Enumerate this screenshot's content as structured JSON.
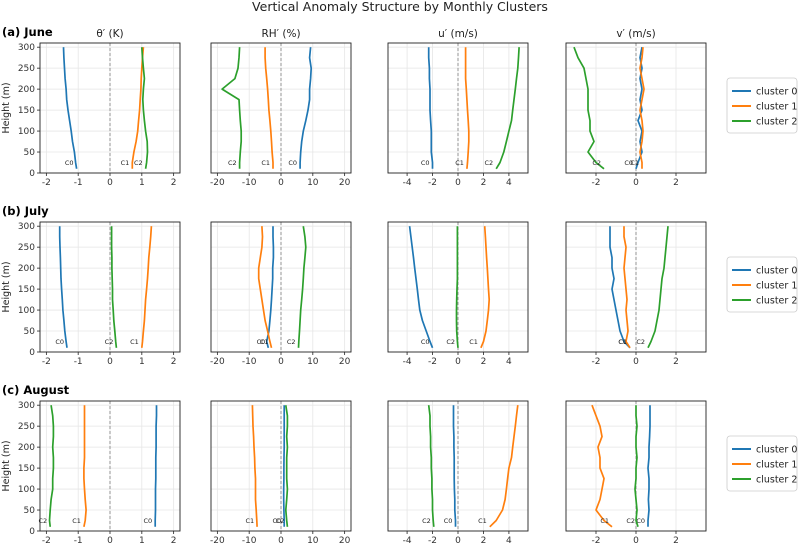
{
  "suptitle": "Vertical Anomaly Structure by Monthly Clusters",
  "ylabel": "Height (m)",
  "variables": [
    {
      "title": "θ′ (K)",
      "xlim": [
        -2.2,
        2.2
      ],
      "xticks": [
        -2,
        -1,
        0,
        1,
        2
      ]
    },
    {
      "title": "RH′ (%)",
      "xlim": [
        -22,
        22
      ],
      "xticks": [
        -20,
        -10,
        0,
        10,
        20
      ]
    },
    {
      "title": "u′ (m/s)",
      "xlim": [
        -5.5,
        5.5
      ],
      "xticks": [
        -4,
        -2,
        0,
        2,
        4
      ]
    },
    {
      "title": "v′ (m/s)",
      "xlim": [
        -3.5,
        3.5
      ],
      "xticks": [
        -2,
        0,
        2
      ]
    }
  ],
  "colors": {
    "cluster 0": "#1f77b4",
    "cluster 1": "#ff7f0e",
    "cluster 2": "#2ca02c"
  },
  "legend": {
    "entries": [
      "cluster 0",
      "cluster 1",
      "cluster 2"
    ],
    "position": "right"
  },
  "chart_data": {
    "type": "line",
    "ylim": [
      0,
      310
    ],
    "yticks": [
      0,
      50,
      100,
      150,
      200,
      250,
      300
    ],
    "heights": [
      10,
      25,
      50,
      75,
      100,
      125,
      150,
      175,
      200,
      225,
      250,
      275,
      300
    ],
    "grid": true,
    "rows": [
      {
        "label": "(a) June",
        "panels": [
          {
            "series": [
              {
                "name": "cluster 0",
                "tag": "C0",
                "values": [
                  -1.05,
                  -1.08,
                  -1.12,
                  -1.18,
                  -1.22,
                  -1.27,
                  -1.32,
                  -1.36,
                  -1.38,
                  -1.41,
                  -1.43,
                  -1.45,
                  -1.46
                ]
              },
              {
                "name": "cluster 1",
                "tag": "C1",
                "values": [
                  0.7,
                  0.7,
                  0.75,
                  0.82,
                  0.87,
                  0.9,
                  0.93,
                  0.95,
                  0.97,
                  0.98,
                  1.0,
                  1.02,
                  1.05
                ]
              },
              {
                "name": "cluster 2",
                "tag": "C2",
                "values": [
                  1.12,
                  1.15,
                  1.18,
                  1.17,
                  1.12,
                  1.08,
                  1.05,
                  1.03,
                  1.05,
                  1.08,
                  1.05,
                  1.02,
                  1.0
                ]
              }
            ]
          },
          {
            "series": [
              {
                "name": "cluster 0",
                "tag": "C0",
                "values": [
                  6.0,
                  6.0,
                  6.2,
                  6.5,
                  7.0,
                  7.8,
                  8.5,
                  9.0,
                  9.0,
                  9.3,
                  9.5,
                  9.0,
                  9.3
                ]
              },
              {
                "name": "cluster 1",
                "tag": "C1",
                "values": [
                  -2.5,
                  -2.5,
                  -2.8,
                  -3.0,
                  -3.2,
                  -3.5,
                  -3.8,
                  -4.0,
                  -4.2,
                  -4.5,
                  -4.8,
                  -5.0,
                  -5.0
                ]
              },
              {
                "name": "cluster 2",
                "tag": "C2",
                "values": [
                  -13.0,
                  -13.0,
                  -12.8,
                  -12.5,
                  -12.5,
                  -12.8,
                  -13.0,
                  -13.2,
                  -18.5,
                  -14.5,
                  -13.5,
                  -13.2,
                  -13.0
                ]
              }
            ]
          },
          {
            "series": [
              {
                "name": "cluster 0",
                "tag": "C0",
                "values": [
                  -2.0,
                  -2.0,
                  -2.1,
                  -2.1,
                  -2.1,
                  -2.15,
                  -2.2,
                  -2.2,
                  -2.2,
                  -2.25,
                  -2.25,
                  -2.3,
                  -2.3
                ]
              },
              {
                "name": "cluster 1",
                "tag": "C1",
                "values": [
                  0.7,
                  0.75,
                  0.8,
                  0.85,
                  0.85,
                  0.8,
                  0.75,
                  0.7,
                  0.65,
                  0.6,
                  0.6,
                  0.6,
                  0.6
                ]
              },
              {
                "name": "cluster 2",
                "tag": "C2",
                "values": [
                  3.0,
                  3.3,
                  3.6,
                  3.8,
                  4.0,
                  4.2,
                  4.3,
                  4.4,
                  4.5,
                  4.6,
                  4.7,
                  4.75,
                  4.8
                ]
              }
            ]
          },
          {
            "series": [
              {
                "name": "cluster 0",
                "tag": "C0",
                "values": [
                  0.0,
                  0.1,
                  0.3,
                  0.2,
                  0.3,
                  0.1,
                  0.3,
                  0.2,
                  0.3,
                  0.2,
                  0.3,
                  0.2,
                  0.3
                ]
              },
              {
                "name": "cluster 1",
                "tag": "C1",
                "values": [
                  0.3,
                  0.3,
                  0.2,
                  0.3,
                  0.35,
                  0.3,
                  0.2,
                  0.3,
                  0.4,
                  0.3,
                  0.2,
                  0.3,
                  0.35
                ]
              },
              {
                "name": "cluster 2",
                "tag": "C2",
                "values": [
                  -1.6,
                  -2.0,
                  -2.4,
                  -2.1,
                  -2.3,
                  -2.3,
                  -2.4,
                  -2.4,
                  -2.4,
                  -2.5,
                  -2.6,
                  -2.9,
                  -3.1
                ]
              }
            ]
          }
        ]
      },
      {
        "label": "(b) July",
        "panels": [
          {
            "series": [
              {
                "name": "cluster 0",
                "tag": "C0",
                "values": [
                  -1.35,
                  -1.38,
                  -1.42,
                  -1.45,
                  -1.48,
                  -1.5,
                  -1.52,
                  -1.54,
                  -1.55,
                  -1.56,
                  -1.57,
                  -1.58,
                  -1.58
                ]
              },
              {
                "name": "cluster 1",
                "tag": "C1",
                "values": [
                  1.0,
                  1.02,
                  1.05,
                  1.08,
                  1.1,
                  1.12,
                  1.15,
                  1.18,
                  1.2,
                  1.22,
                  1.25,
                  1.28,
                  1.3
                ]
              },
              {
                "name": "cluster 2",
                "tag": "C2",
                "values": [
                  0.2,
                  0.18,
                  0.15,
                  0.12,
                  0.1,
                  0.08,
                  0.08,
                  0.07,
                  0.06,
                  0.06,
                  0.05,
                  0.05,
                  0.05
                ]
              }
            ]
          },
          {
            "series": [
              {
                "name": "cluster 0",
                "tag": "C0",
                "values": [
                  -4.0,
                  -4.5,
                  -3.8,
                  -3.5,
                  -3.2,
                  -3.0,
                  -2.8,
                  -2.6,
                  -2.6,
                  -2.4,
                  -2.4,
                  -2.5,
                  -2.5
                ]
              },
              {
                "name": "cluster 1",
                "tag": "C1",
                "values": [
                  -3.0,
                  -3.5,
                  -4.2,
                  -5.0,
                  -5.5,
                  -6.0,
                  -6.5,
                  -7.0,
                  -7.0,
                  -6.5,
                  -6.0,
                  -5.8,
                  -6.0
                ]
              },
              {
                "name": "cluster 2",
                "tag": "C2",
                "values": [
                  5.5,
                  5.6,
                  5.8,
                  6.0,
                  6.2,
                  6.5,
                  6.8,
                  7.0,
                  7.2,
                  7.5,
                  7.8,
                  7.5,
                  7.0
                ]
              }
            ]
          },
          {
            "series": [
              {
                "name": "cluster 0",
                "tag": "C0",
                "values": [
                  -2.0,
                  -2.2,
                  -2.5,
                  -2.8,
                  -3.0,
                  -3.1,
                  -3.2,
                  -3.3,
                  -3.4,
                  -3.5,
                  -3.6,
                  -3.7,
                  -3.8
                ]
              },
              {
                "name": "cluster 1",
                "tag": "C1",
                "values": [
                  1.8,
                  2.0,
                  2.2,
                  2.3,
                  2.4,
                  2.45,
                  2.4,
                  2.35,
                  2.3,
                  2.25,
                  2.2,
                  2.15,
                  2.1
                ]
              },
              {
                "name": "cluster 2",
                "tag": "C2",
                "values": [
                  0.0,
                  -0.05,
                  -0.1,
                  -0.12,
                  -0.12,
                  -0.1,
                  -0.08,
                  -0.05,
                  -0.05,
                  -0.05,
                  -0.05,
                  -0.05,
                  -0.05
                ]
              }
            ]
          },
          {
            "series": [
              {
                "name": "cluster 0",
                "tag": "C0",
                "values": [
                  -0.3,
                  -0.6,
                  -0.8,
                  -0.9,
                  -1.0,
                  -1.1,
                  -1.2,
                  -1.1,
                  -1.2,
                  -1.2,
                  -1.3,
                  -1.3,
                  -1.3
                ]
              },
              {
                "name": "cluster 1",
                "tag": "C1",
                "values": [
                  -0.3,
                  -0.5,
                  -0.4,
                  -0.45,
                  -0.5,
                  -0.45,
                  -0.5,
                  -0.55,
                  -0.6,
                  -0.55,
                  -0.5,
                  -0.6,
                  -0.6
                ]
              },
              {
                "name": "cluster 2",
                "tag": "C2",
                "values": [
                  0.6,
                  0.75,
                  0.95,
                  1.05,
                  1.15,
                  1.2,
                  1.25,
                  1.3,
                  1.4,
                  1.45,
                  1.5,
                  1.55,
                  1.6
                ]
              }
            ]
          }
        ]
      },
      {
        "label": "(c) August",
        "panels": [
          {
            "series": [
              {
                "name": "cluster 0",
                "tag": "C0",
                "values": [
                  1.42,
                  1.42,
                  1.43,
                  1.43,
                  1.43,
                  1.44,
                  1.44,
                  1.44,
                  1.45,
                  1.45,
                  1.45,
                  1.46,
                  1.46
                ]
              },
              {
                "name": "cluster 1",
                "tag": "C1",
                "values": [
                  -0.82,
                  -0.78,
                  -0.75,
                  -0.78,
                  -0.8,
                  -0.82,
                  -0.82,
                  -0.8,
                  -0.8,
                  -0.8,
                  -0.8,
                  -0.8,
                  -0.8
                ]
              },
              {
                "name": "cluster 2",
                "tag": "C2",
                "values": [
                  -1.88,
                  -1.9,
                  -1.88,
                  -1.85,
                  -1.8,
                  -1.8,
                  -1.78,
                  -1.78,
                  -1.8,
                  -1.78,
                  -1.78,
                  -1.8,
                  -1.85
                ]
              }
            ]
          },
          {
            "series": [
              {
                "name": "cluster 0",
                "tag": "C0",
                "values": [
                  1.0,
                  1.0,
                  0.9,
                  0.85,
                  0.85,
                  0.9,
                  0.9,
                  0.95,
                  1.0,
                  1.0,
                  1.0,
                  1.0,
                  1.0
                ]
              },
              {
                "name": "cluster 1",
                "tag": "C1",
                "values": [
                  -7.5,
                  -7.6,
                  -7.8,
                  -8.0,
                  -8.0,
                  -8.0,
                  -8.2,
                  -8.3,
                  -8.5,
                  -8.6,
                  -8.8,
                  -8.9,
                  -9.0
                ]
              },
              {
                "name": "cluster 2",
                "tag": "C2",
                "values": [
                  2.0,
                  1.8,
                  1.5,
                  1.8,
                  2.0,
                  1.8,
                  1.8,
                  1.8,
                  2.0,
                  1.8,
                  2.0,
                  2.0,
                  1.5
                ]
              }
            ]
          },
          {
            "series": [
              {
                "name": "cluster 0",
                "tag": "C0",
                "values": [
                  -0.2,
                  -0.2,
                  -0.25,
                  -0.25,
                  -0.28,
                  -0.3,
                  -0.3,
                  -0.3,
                  -0.32,
                  -0.32,
                  -0.35,
                  -0.35,
                  -0.35
                ]
              },
              {
                "name": "cluster 1",
                "tag": "C1",
                "values": [
                  2.5,
                  3.0,
                  3.5,
                  3.7,
                  3.8,
                  3.9,
                  4.0,
                  4.2,
                  4.3,
                  4.4,
                  4.5,
                  4.6,
                  4.7
                ]
              },
              {
                "name": "cluster 2",
                "tag": "C2",
                "values": [
                  -1.9,
                  -1.95,
                  -2.0,
                  -2.0,
                  -2.05,
                  -2.05,
                  -2.1,
                  -2.1,
                  -2.15,
                  -2.15,
                  -2.2,
                  -2.2,
                  -2.3
                ]
              }
            ]
          },
          {
            "series": [
              {
                "name": "cluster 0",
                "tag": "C0",
                "values": [
                  0.6,
                  0.6,
                  0.65,
                  0.62,
                  0.65,
                  0.65,
                  0.6,
                  0.65,
                  0.65,
                  0.68,
                  0.7,
                  0.7,
                  0.7
                ]
              },
              {
                "name": "cluster 1",
                "tag": "C1",
                "values": [
                  -1.2,
                  -1.6,
                  -2.0,
                  -1.8,
                  -1.7,
                  -1.6,
                  -1.8,
                  -1.8,
                  -1.9,
                  -1.7,
                  -1.8,
                  -2.0,
                  -2.2
                ]
              },
              {
                "name": "cluster 2",
                "tag": "C2",
                "values": [
                  0.1,
                  0.0,
                  0.05,
                  0.0,
                  -0.05,
                  0.0,
                  0.0,
                  0.05,
                  0.0,
                  0.0,
                  0.05,
                  0.0,
                  0.0
                ]
              }
            ]
          }
        ]
      }
    ]
  }
}
